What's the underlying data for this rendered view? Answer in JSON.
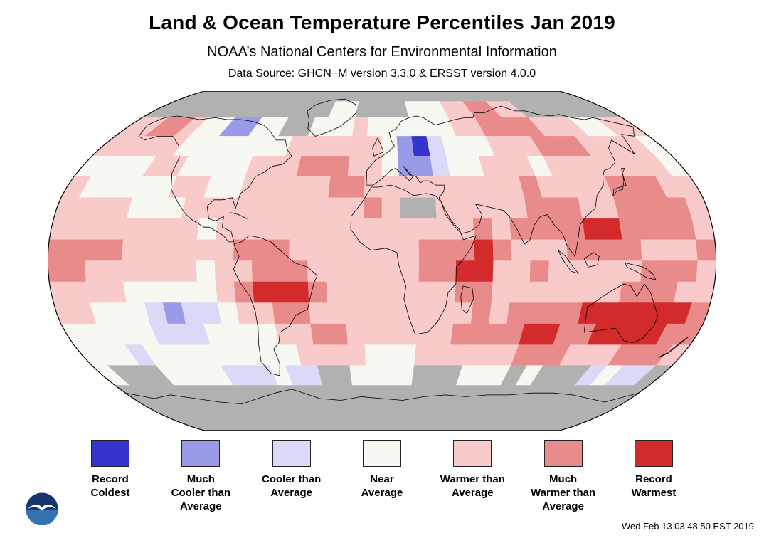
{
  "header": {
    "title": "Land & Ocean Temperature Percentiles Jan 2019",
    "subtitle": "NOAA’s National Centers for Environmental Information",
    "data_source": "Data Source: GHCN−M version 3.3.0 & ERSST version 4.0.0"
  },
  "footer": {
    "timestamp": "Wed Feb 13 03:48:50 EST 2019",
    "logo": "noaa-logo"
  },
  "chart_data": {
    "type": "heatmap",
    "projection": "robinson-world-map",
    "title": "Land & Ocean Temperature Percentiles Jan 2019",
    "legend_position": "bottom",
    "categories": [
      {
        "code": "1",
        "label": "Record\nColdest",
        "color": "#3434cd"
      },
      {
        "code": "2",
        "label": "Much\nCooler than\nAverage",
        "color": "#9a9ae8"
      },
      {
        "code": "3",
        "label": "Cooler than\nAverage",
        "color": "#dadaf8"
      },
      {
        "code": "4",
        "label": "Near\nAverage",
        "color": "#f8f8f2"
      },
      {
        "code": "5",
        "label": "Warmer than\nAverage",
        "color": "#f9caca"
      },
      {
        "code": "6",
        "label": "Much\nWarmer than\nAverage",
        "color": "#e98b8b"
      },
      {
        "code": "7",
        "label": "Record\nWarmest",
        "color": "#d32b2b"
      }
    ],
    "no_data_color": "#b1b1b1",
    "grid": {
      "cell_size_degrees": 10,
      "lat_start": 90,
      "lon_start": -180,
      "rows": [
        "000000000000000000000000000000000000",
        "000000000000004400004445566550000000",
        "556654422440044454444445566665554455",
        "555554444444555555421344455566655554",
        "444455444455566655422344555455555554",
        "544444554455555665555555556555566655",
        "555544455555555556500555556665566665",
        "555555554555555555555556566667766665",
        "666655555566655555556667655566665556",
        "665555554556665555556677556555556665",
        "555544444567776555555566555555566655",
        "554443233455665555555556566667777776",
        "444443334444556655555566667766777766",
        "444344444444455554445555556665556665",
        "400044443334330044440004440400034330",
        "000000000000000000000000000000000000",
        "000000000000000000000000000000000000",
        "000000000000000000000000000000000000"
      ]
    }
  }
}
